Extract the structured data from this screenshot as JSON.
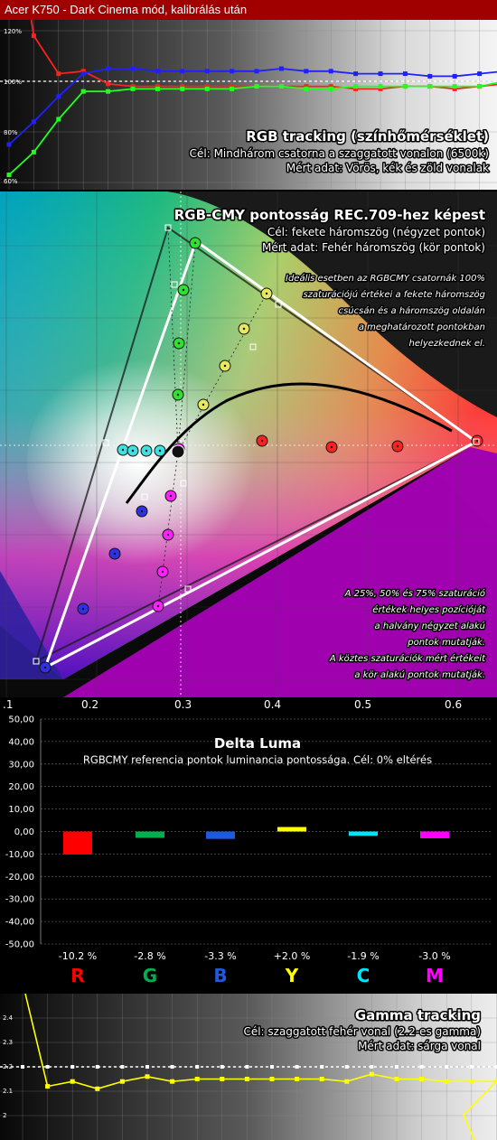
{
  "header": {
    "title": "Acer K750 - Dark Cinema mód, kalibrálás után"
  },
  "rgb_tracking": {
    "title": "RGB tracking (színhőmérséklet)",
    "line1": "Cél: Mindhárom csatorna a szaggatott vonalon (6500k)",
    "line2": "Mért adat: Vörös, kék és zöld vonalak",
    "ticks": [
      "120%",
      "100%",
      "80%",
      "60%"
    ]
  },
  "gamut": {
    "title": "RGB-CMY pontosság REC.709-hez képest",
    "line1": "Cél: fekete háromszög (négyzet pontok)",
    "line2": "Mért adat: Fehér háromszög (kör pontok)",
    "note_top": [
      "Ideális esetben az RGBCMY csatornák 100%",
      "szaturációjú értékei a fekete háromszög",
      "csúcsán  és a háromszög oldalán",
      "a meghatározott pontokban",
      "helyezkednek el."
    ],
    "note_bottom": [
      "A 25%, 50% és 75% szaturáció",
      "értékek helyes pozícióját",
      "a halvány négyzet alakú",
      "pontok mutatják.",
      "A köztes szaturációk mért értékeit",
      "a kör alakú pontok mutatják."
    ],
    "x_ticks": [
      ".1",
      "0.2",
      "0.3",
      "0.4",
      "0.5",
      "0.6"
    ]
  },
  "delta_luma": {
    "title": "Delta Luma",
    "subtitle": "RGBCMY referencia pontok luminancia pontossága. Cél: 0% eltérés",
    "y_ticks": [
      "50,00",
      "40,00",
      "30,00",
      "20,00",
      "10,00",
      "0,00",
      "-10,00",
      "-20,00",
      "-30,00",
      "-40,00",
      "-50,00"
    ]
  },
  "gamma_tracking": {
    "title": "Gamma tracking",
    "line1": "Cél: szaggatott fehér vonal (2.2-es gamma)",
    "line2": "Mért adat: sárga vonal",
    "ticks": [
      "2.4",
      "2.3",
      "2.2",
      "2.1",
      "2"
    ]
  },
  "chart_data": [
    {
      "type": "line",
      "title": "RGB tracking (színhőmérséklet)",
      "ylim": [
        60,
        120
      ],
      "x": [
        0,
        1,
        2,
        3,
        4,
        5,
        6,
        7,
        8,
        9,
        10,
        11,
        12,
        13,
        14,
        15,
        16,
        17,
        18,
        19,
        20
      ],
      "series": [
        {
          "name": "Vörös",
          "color": "#ff2020",
          "values": [
            null,
            118,
            103,
            104,
            99,
            98,
            98,
            98,
            98,
            98,
            98,
            98,
            98,
            98,
            97,
            97,
            98,
            98,
            97,
            98,
            99
          ]
        },
        {
          "name": "Kék",
          "color": "#2020ff",
          "values": [
            75,
            84,
            94,
            103,
            105,
            105,
            104,
            104,
            104,
            104,
            104,
            105,
            104,
            104,
            103,
            103,
            103,
            102,
            102,
            103,
            104
          ]
        },
        {
          "name": "Zöld",
          "color": "#20ff20",
          "values": [
            63,
            72,
            85,
            96,
            96,
            97,
            97,
            97,
            97,
            97,
            98,
            98,
            97,
            97,
            98,
            98,
            98,
            98,
            98,
            98,
            100
          ]
        }
      ],
      "target": 100
    },
    {
      "type": "scatter",
      "title": "RGB-CMY pontosság REC.709-hez képest",
      "xlim": [
        0.1,
        0.65
      ],
      "target_triangle": [
        [
          0.64,
          0.33
        ],
        [
          0.3,
          0.6
        ],
        [
          0.15,
          0.06
        ]
      ],
      "measured_triangle": [
        [
          0.626,
          0.334
        ],
        [
          0.318,
          0.59
        ],
        [
          0.153,
          0.061
        ]
      ],
      "white_point": [
        0.313,
        0.329
      ]
    },
    {
      "type": "bar",
      "title": "Delta Luma",
      "categories": [
        "R",
        "G",
        "B",
        "Y",
        "C",
        "M"
      ],
      "values": [
        -10.2,
        -2.8,
        -3.3,
        2.0,
        -1.9,
        -3.0
      ],
      "value_labels": [
        "-10.2 %",
        "-2.8 %",
        "-3.3 %",
        "+2.0 %",
        "-1.9 %",
        "-3.0 %"
      ],
      "colors": [
        "#ff0000",
        "#00b050",
        "#1e5adc",
        "#ffff00",
        "#00e5ff",
        "#ff00ff"
      ],
      "ylim": [
        -50,
        50
      ]
    },
    {
      "type": "line",
      "title": "Gamma tracking",
      "ylim": [
        2.0,
        2.4
      ],
      "target": 2.2,
      "x": [
        0,
        1,
        2,
        3,
        4,
        5,
        6,
        7,
        8,
        9,
        10,
        11,
        12,
        13,
        14,
        15,
        16,
        17,
        18,
        19
      ],
      "series": [
        {
          "name": "Gamma",
          "color": "#ffff00",
          "values": [
            2.43,
            2.12,
            2.14,
            2.11,
            2.14,
            2.16,
            2.14,
            2.15,
            2.15,
            2.15,
            2.15,
            2.15,
            2.15,
            2.14,
            2.17,
            2.15,
            2.15,
            2.14,
            2.14,
            2.14
          ]
        }
      ]
    }
  ]
}
